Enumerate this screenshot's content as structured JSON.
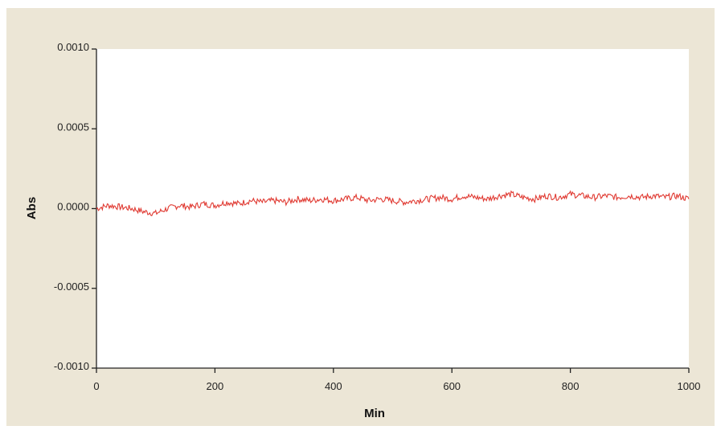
{
  "chart_data": {
    "type": "line",
    "xlabel": "Min",
    "ylabel": "Abs",
    "xlim": [
      0,
      1000
    ],
    "ylim": [
      -0.001,
      0.001
    ],
    "x_ticks": [
      "0",
      "200",
      "400",
      "600",
      "800",
      "1000"
    ],
    "y_ticks": [
      "0.0010",
      "0.0005",
      "0.0000",
      "-0.0005",
      "-0.0010"
    ],
    "x_tick_values": [
      0,
      200,
      400,
      600,
      800,
      1000
    ],
    "y_tick_values": [
      0.001,
      0.0005,
      0,
      -0.0005,
      -0.001
    ],
    "grid": false,
    "colors": {
      "series": "#e03a32",
      "figure_bg": "#ece6d6",
      "plot_bg": "#ffffff"
    },
    "series": [
      {
        "x": [
          0,
          20,
          40,
          60,
          80,
          100,
          120,
          140,
          160,
          180,
          200,
          220,
          240,
          260,
          280,
          300,
          320,
          340,
          360,
          380,
          400,
          420,
          440,
          460,
          480,
          500,
          520,
          540,
          560,
          580,
          600,
          620,
          640,
          660,
          680,
          700,
          720,
          740,
          760,
          780,
          800,
          820,
          840,
          860,
          880,
          900,
          920,
          940,
          960,
          980,
          1000
        ],
        "y": [
          0.0,
          2e-05,
          1e-05,
          0.0,
          -2e-05,
          -3e-05,
          0.0,
          2e-05,
          1e-05,
          3e-05,
          2e-05,
          4e-05,
          3e-05,
          5e-05,
          4e-05,
          5e-05,
          4e-05,
          6e-05,
          5e-05,
          6e-05,
          5e-05,
          6e-05,
          7e-05,
          5e-05,
          6e-05,
          5e-05,
          4e-05,
          5e-05,
          6e-05,
          7e-05,
          6e-05,
          8e-05,
          7e-05,
          6e-05,
          8e-05,
          9e-05,
          7e-05,
          6e-05,
          8e-05,
          7e-05,
          9e-05,
          8e-05,
          7e-05,
          8e-05,
          7e-05,
          8e-05,
          7e-05,
          8e-05,
          7e-05,
          8e-05,
          6e-05
        ]
      }
    ]
  }
}
